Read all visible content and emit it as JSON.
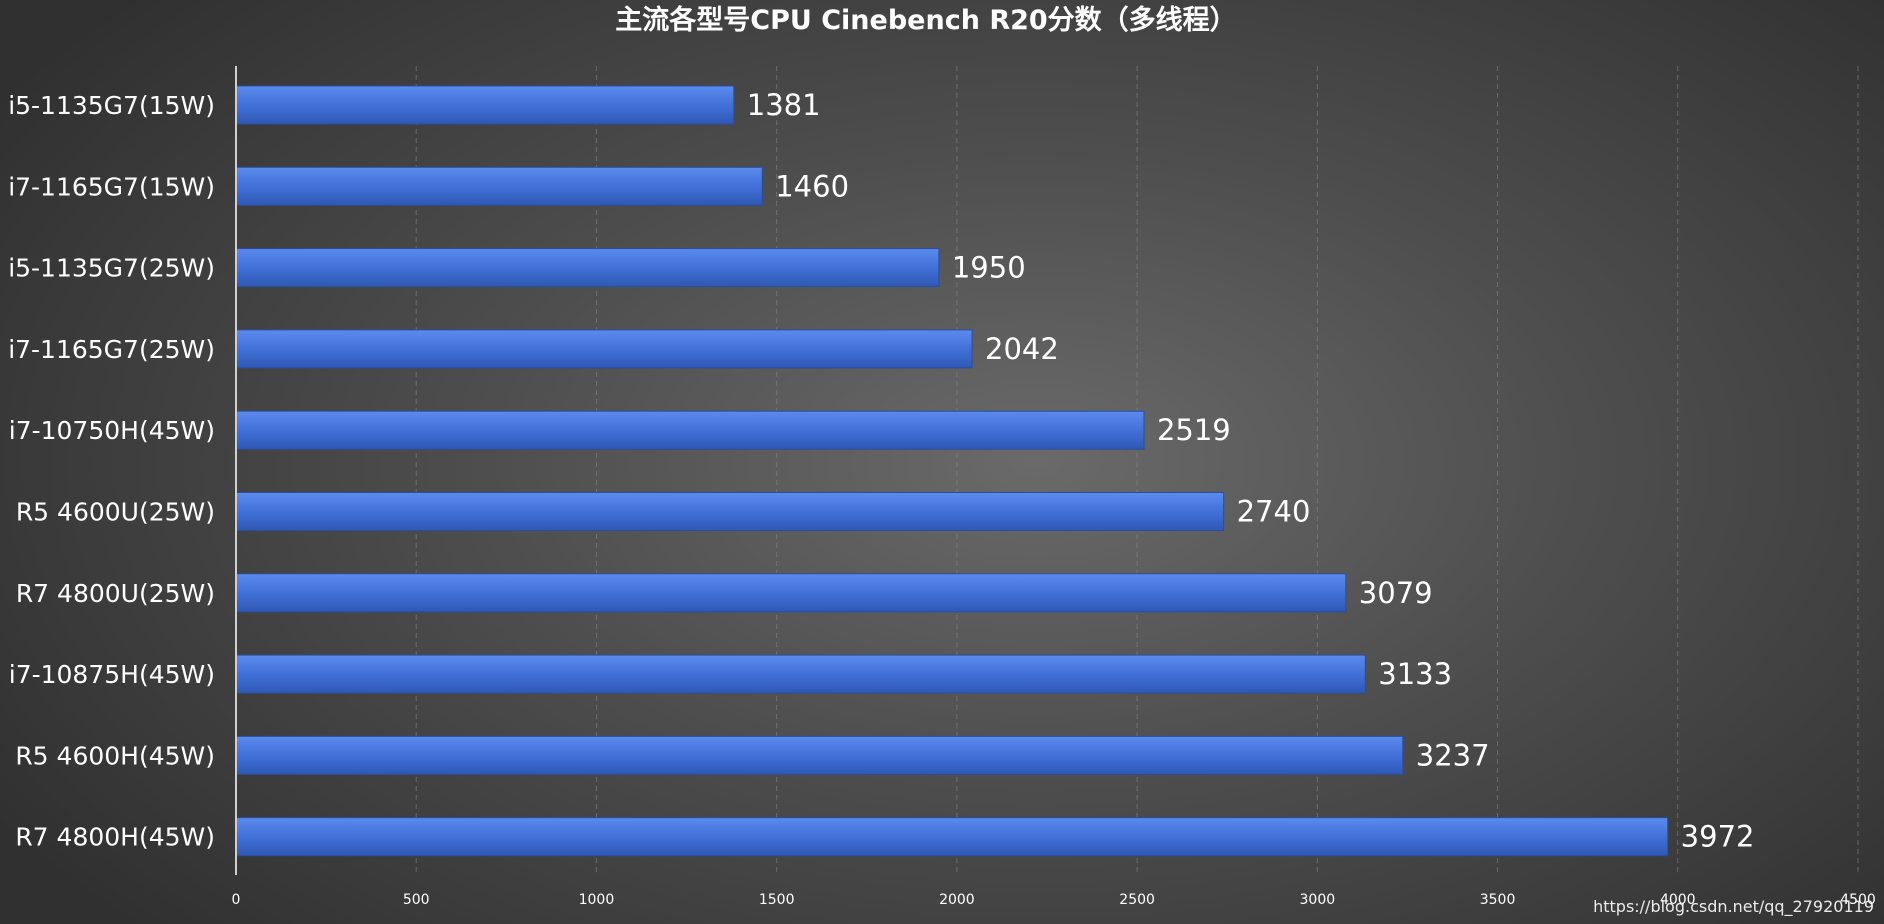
{
  "chart_data": {
    "type": "bar",
    "orientation": "horizontal",
    "title": "主流各型号CPU Cinebench R20分数（多线程）",
    "categories": [
      "i5-1135G7(15W)",
      "i7-1165G7(15W)",
      "i5-1135G7(25W)",
      "i7-1165G7(25W)",
      "i7-10750H(45W)",
      "R5 4600U(25W)",
      "R7 4800U(25W)",
      "i7-10875H(45W)",
      "R5 4600H(45W)",
      "R7 4800H(45W)"
    ],
    "values": [
      1381,
      1460,
      1950,
      2042,
      2519,
      2740,
      3079,
      3133,
      3237,
      3972
    ],
    "xlim": [
      0,
      4500
    ],
    "xticks": [
      0,
      500,
      1000,
      1500,
      2000,
      2500,
      3000,
      3500,
      4000,
      4500
    ],
    "grid": true,
    "bar_color": "#3f6fd6",
    "data_labels": true
  },
  "watermark": "https://blog.csdn.net/qq_27920119"
}
